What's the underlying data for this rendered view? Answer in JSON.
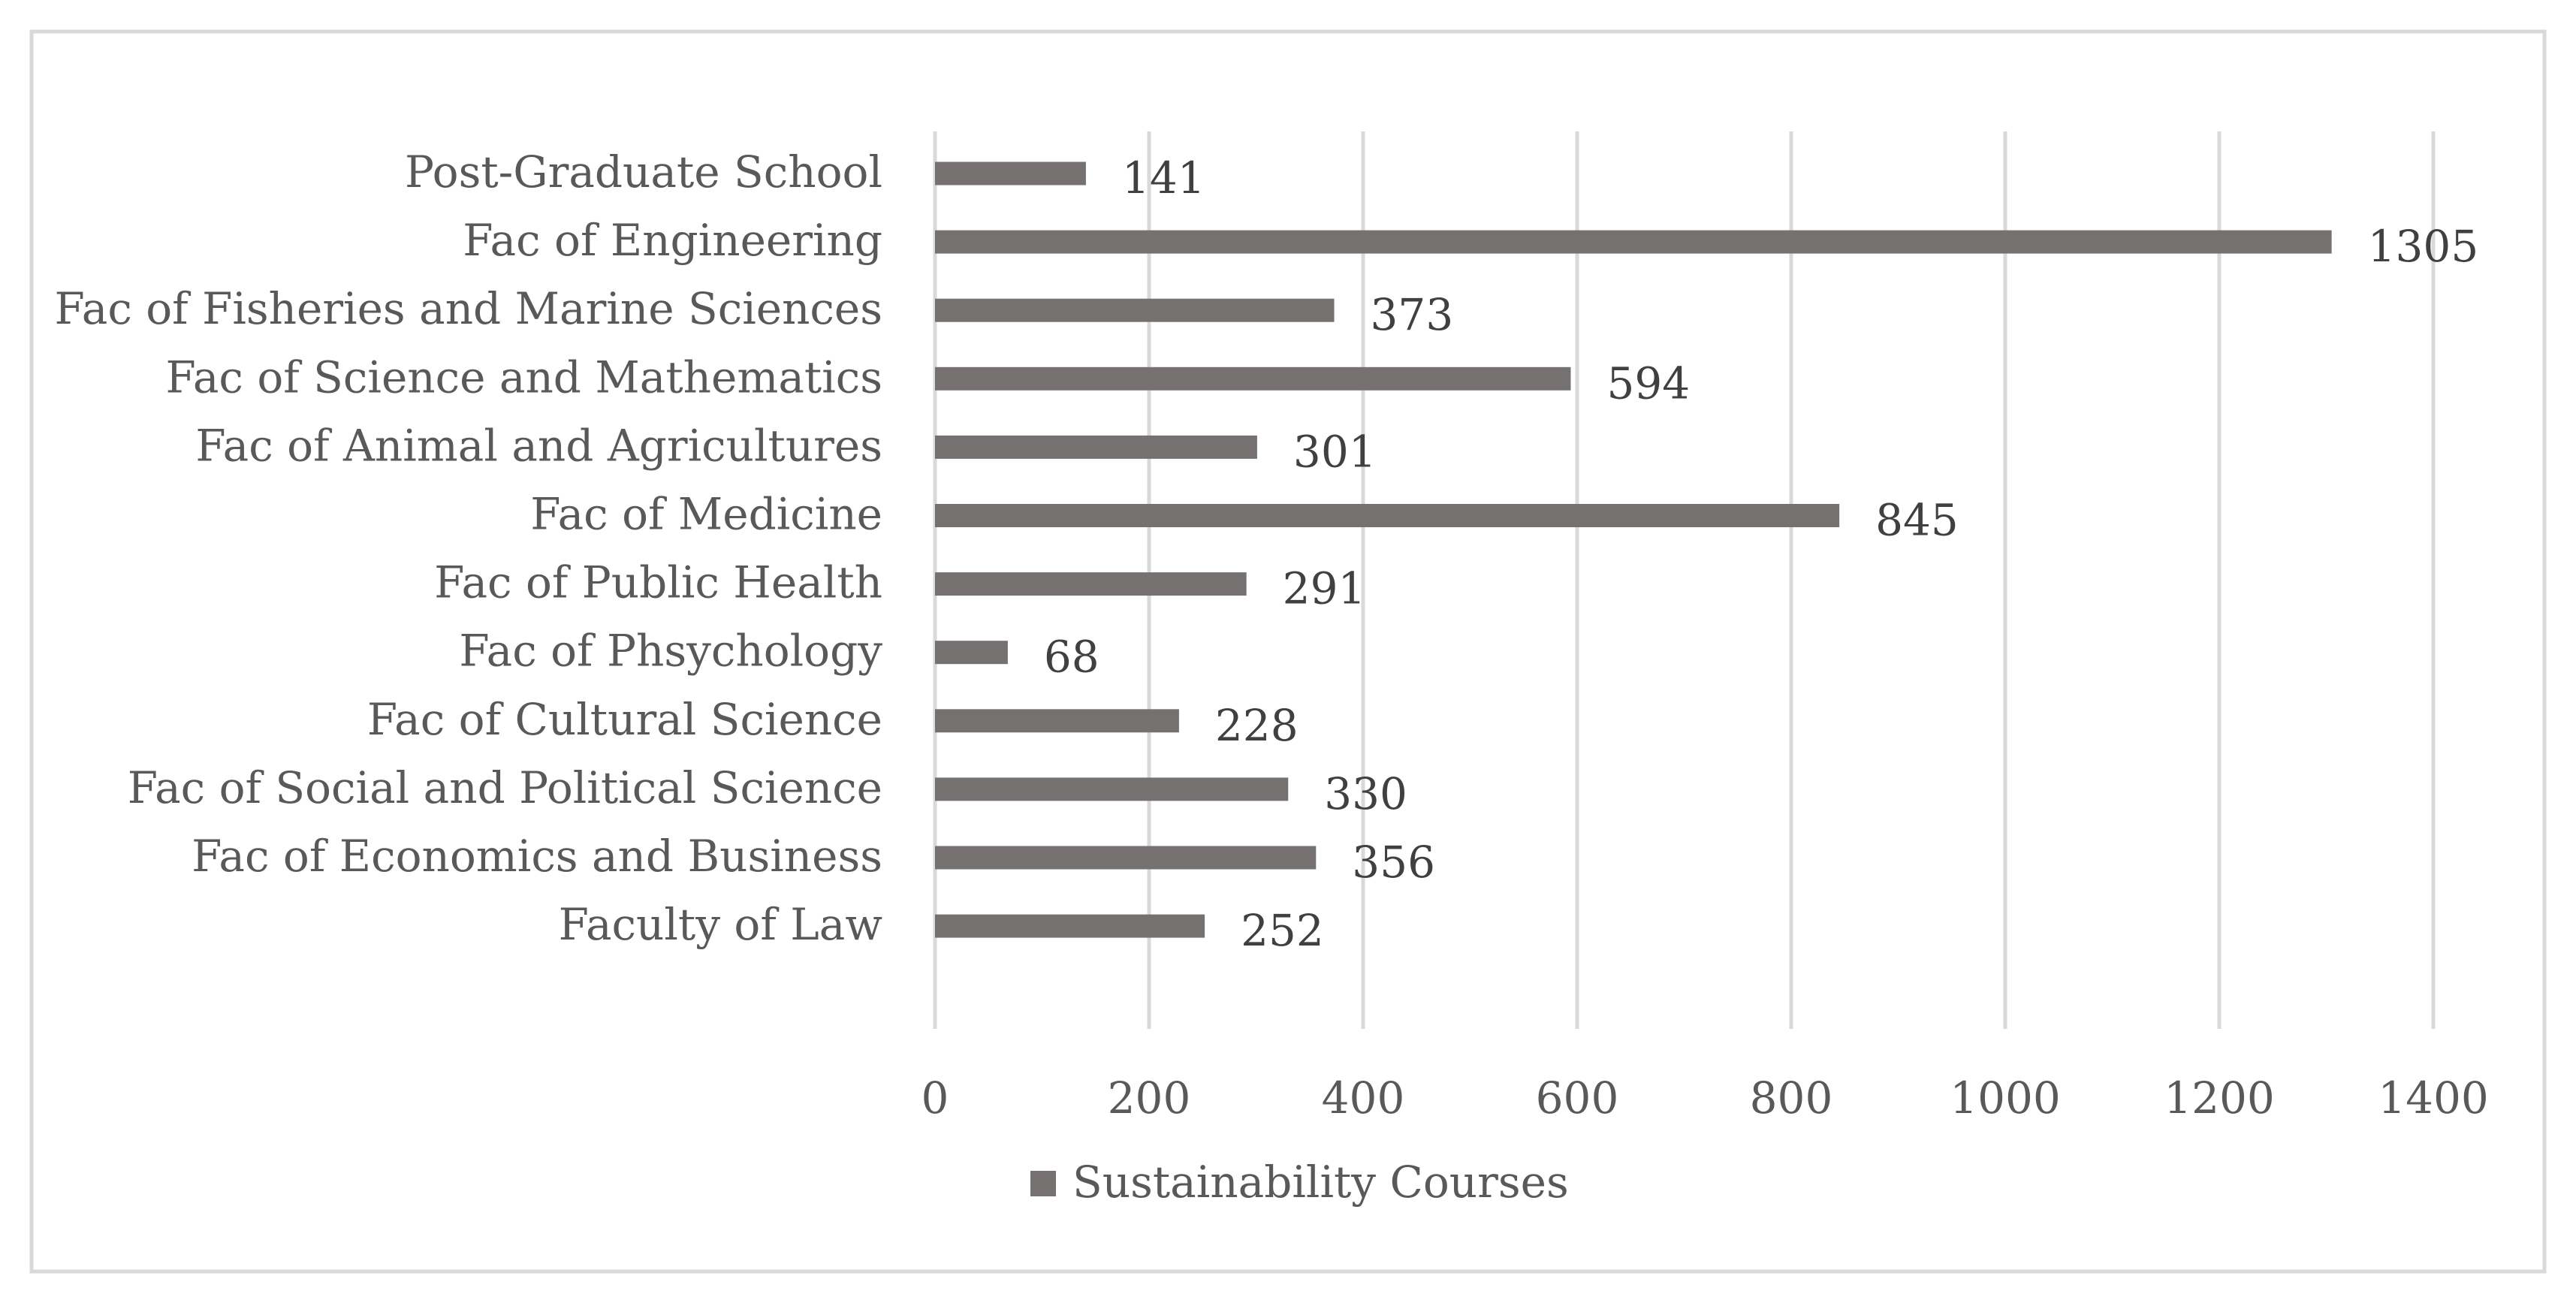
{
  "chart_data": {
    "type": "bar",
    "orientation": "horizontal",
    "title": "",
    "xlabel": "",
    "ylabel": "",
    "categories": [
      "Post-Graduate School",
      "Fac of Engineering",
      "Fac of Fisheries and Marine Sciences",
      "Fac of Science and Mathematics",
      "Fac of Animal and Agricultures",
      "Fac of Medicine",
      "Fac of Public Health",
      "Fac of Phsychology",
      "Fac of Cultural Science ",
      "Fac of Social and Political Science",
      "Fac of Economics and Business",
      "Faculty of Law"
    ],
    "series": [
      {
        "name": "Sustainability Courses",
        "values": [
          141,
          1305,
          373,
          594,
          301,
          845,
          291,
          68,
          228,
          330,
          356,
          252
        ]
      }
    ],
    "value_labels": [
      "141",
      "1305",
      "373",
      "594",
      "301",
      "845",
      "291",
      "68",
      "228",
      "330",
      "356",
      "252"
    ],
    "xlim": [
      0,
      1400
    ],
    "ticks": [
      0,
      200,
      400,
      600,
      800,
      1000,
      1200,
      1400
    ],
    "tick_labels": [
      "0",
      "200",
      "400",
      "600",
      "800",
      "1000",
      "1200",
      "1400"
    ],
    "grid": true,
    "legend": "bottom-center",
    "colors": {
      "bar": "#767171",
      "grid": "#d9d9d9",
      "border": "#d9d9d9",
      "label": "#595959"
    }
  }
}
